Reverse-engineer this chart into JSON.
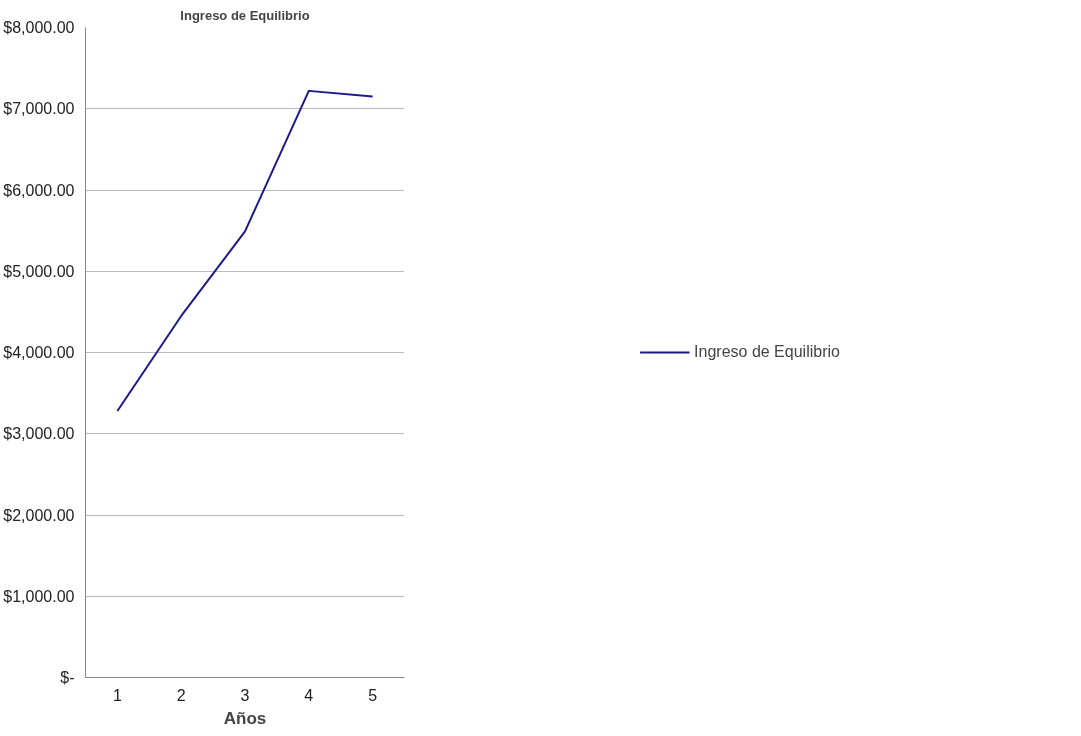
{
  "chart_data": {
    "type": "line",
    "title": "Ingreso de Equilibrio",
    "xlabel": "Años",
    "categories": [
      "1",
      "2",
      "3",
      "4",
      "5"
    ],
    "series": [
      {
        "name": "Ingreso de Equilibrio",
        "color": "#1a1a8c",
        "values": [
          3280,
          4450,
          5490,
          7220,
          7150
        ]
      }
    ],
    "ylim": [
      0,
      8000
    ],
    "yticks": [
      {
        "value": 0,
        "label": "$-"
      },
      {
        "value": 1000,
        "label": "$1,000.00"
      },
      {
        "value": 2000,
        "label": "$2,000.00"
      },
      {
        "value": 3000,
        "label": "$3,000.00"
      },
      {
        "value": 4000,
        "label": "$4,000.00"
      },
      {
        "value": 5000,
        "label": "$5,000.00"
      },
      {
        "value": 6000,
        "label": "$6,000.00"
      },
      {
        "value": 7000,
        "label": "$7,000.00"
      },
      {
        "value": 8000,
        "label": "$8,000.00"
      }
    ],
    "grid": "y",
    "legend": "right",
    "marker": "none",
    "line_style": "solid"
  }
}
